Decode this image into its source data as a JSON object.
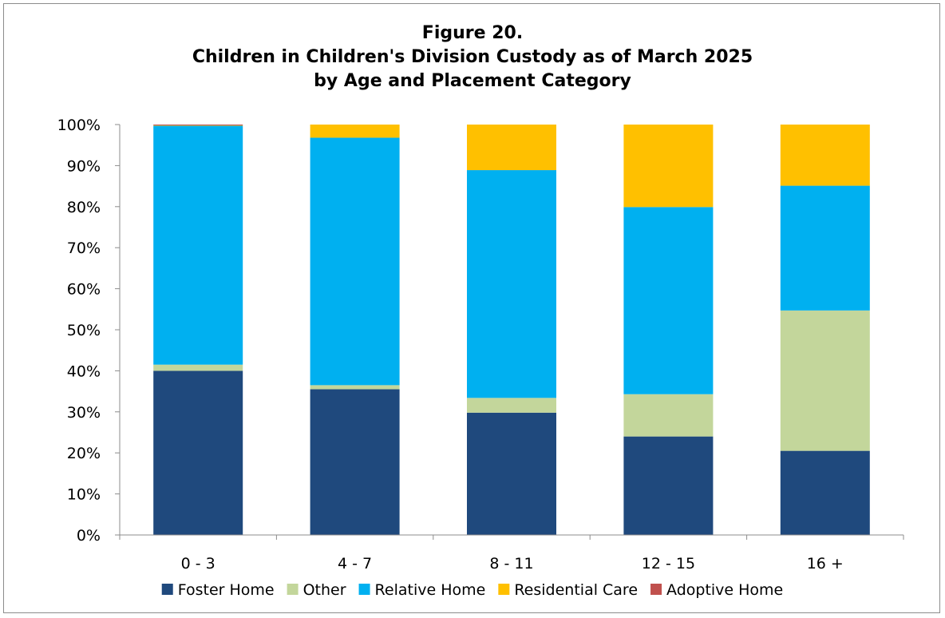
{
  "chart_data": {
    "type": "bar",
    "stacked": true,
    "title": "Figure 20.",
    "subtitle": "Children in Children's Division Custody as of March 2025",
    "subtitle2": "by Age and Placement Category",
    "categories": [
      "0 - 3",
      "4 - 7",
      "8 - 11",
      "12 - 15",
      "16 +"
    ],
    "ylim": [
      0,
      100
    ],
    "y_ticks": [
      "0%",
      "10%",
      "20%",
      "30%",
      "40%",
      "50%",
      "60%",
      "70%",
      "80%",
      "90%",
      "100%"
    ],
    "grid": false,
    "legend_position": "bottom",
    "series": [
      {
        "name": "Foster Home",
        "color": "#1f497d",
        "values": [
          40.0,
          35.5,
          29.8,
          24.0,
          20.5
        ]
      },
      {
        "name": "Other",
        "color": "#c3d69b",
        "values": [
          1.5,
          1.0,
          3.6,
          10.3,
          34.2
        ]
      },
      {
        "name": "Relative Home",
        "color": "#00b0f0",
        "values": [
          58.2,
          60.3,
          55.5,
          45.6,
          30.4
        ]
      },
      {
        "name": "Residential Care",
        "color": "#ffc000",
        "values": [
          0.1,
          3.2,
          11.1,
          20.1,
          14.9
        ]
      },
      {
        "name": "Adoptive Home",
        "color": "#c0504d",
        "values": [
          0.2,
          0.0,
          0.0,
          0.0,
          0.0
        ]
      }
    ]
  }
}
